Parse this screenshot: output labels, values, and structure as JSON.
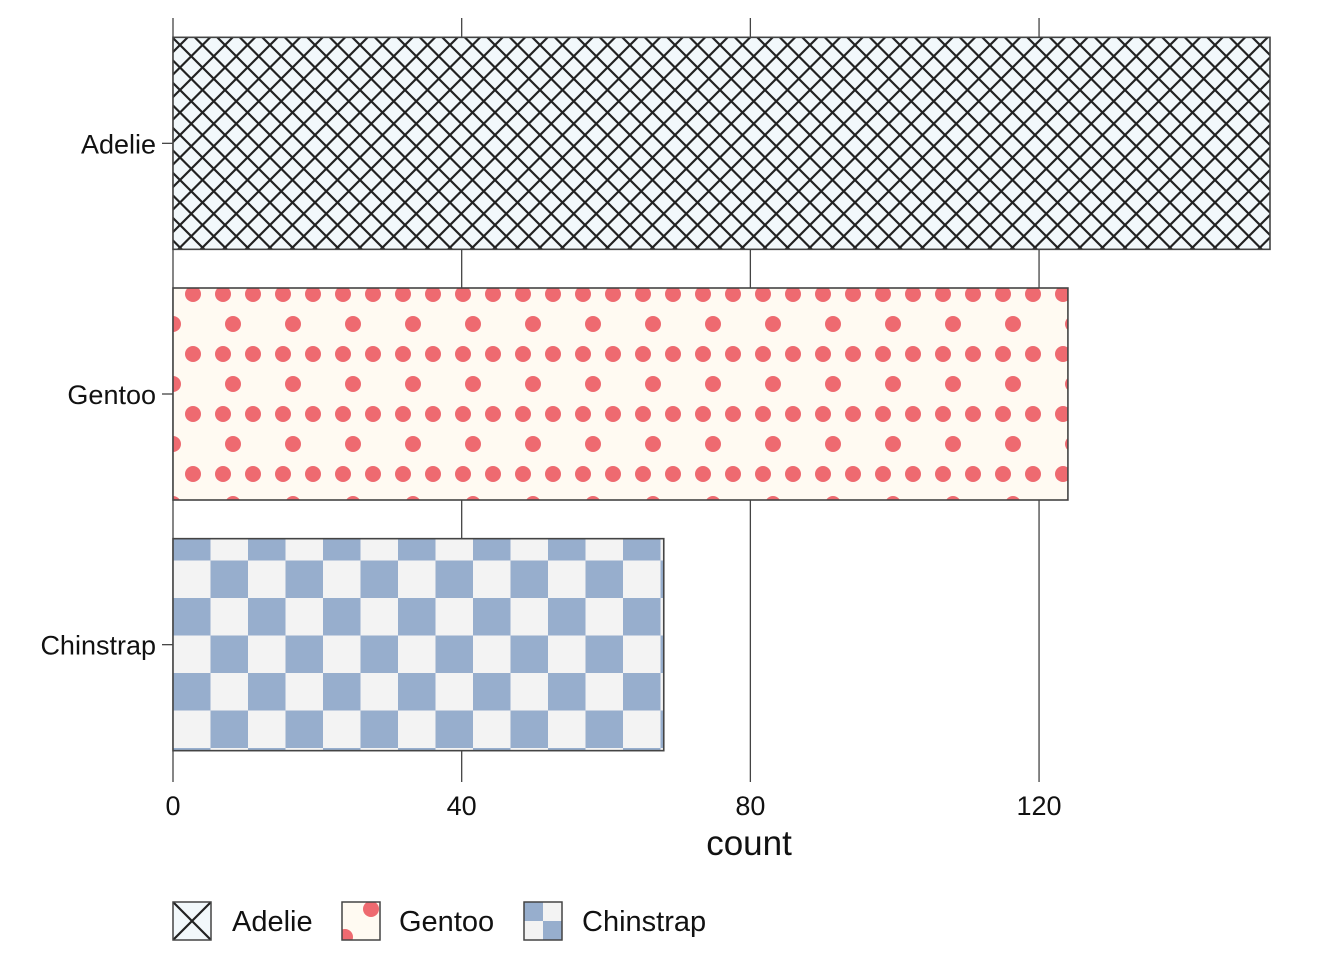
{
  "chart_data": {
    "type": "bar",
    "orientation": "horizontal",
    "categories": [
      "Adelie",
      "Gentoo",
      "Chinstrap"
    ],
    "values": [
      152,
      124,
      68
    ],
    "xlabel": "count",
    "ylabel": "",
    "xlim": [
      0,
      152
    ],
    "x_ticks": [
      0,
      40,
      80,
      120
    ],
    "x_tick_labels": [
      "0",
      "40",
      "80",
      "120"
    ],
    "grid": "vertical-major",
    "legend_position": "bottom-left",
    "legend": [
      {
        "label": "Adelie",
        "pattern": "crosshatch"
      },
      {
        "label": "Gentoo",
        "pattern": "dots"
      },
      {
        "label": "Chinstrap",
        "pattern": "checkerboard"
      }
    ],
    "colors": {
      "adelie_fill": "#f2f8fb",
      "adelie_line": "#222222",
      "gentoo_fill": "#fffaf2",
      "gentoo_dot": "#ee6a70",
      "chinstrap_light": "#f3f3f3",
      "chinstrap_dark": "#97aecd",
      "grid": "#444444",
      "bar_border": "#444444"
    }
  }
}
